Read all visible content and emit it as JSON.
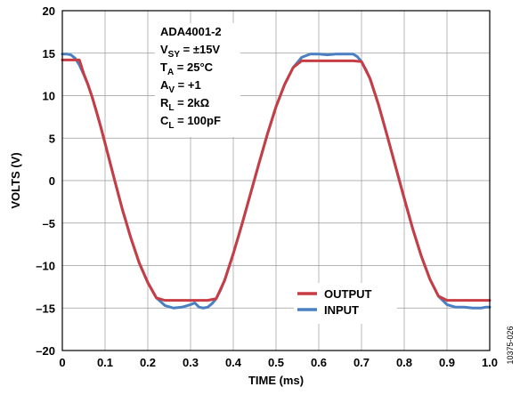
{
  "chart_data": {
    "type": "line",
    "xlabel": "TIME (ms)",
    "ylabel": "VOLTS (V)",
    "xlim": [
      0,
      1.0
    ],
    "ylim": [
      -20,
      20
    ],
    "xticks": [
      0,
      0.1,
      0.2,
      0.3,
      0.4,
      0.5,
      0.6,
      0.7,
      0.8,
      0.9,
      1.0
    ],
    "xtick_labels": [
      "0",
      "0.1",
      "0.2",
      "0.3",
      "0.4",
      "0.5",
      "0.6",
      "0.7",
      "0.8",
      "0.9",
      "1.0"
    ],
    "yticks": [
      20,
      15,
      10,
      5,
      0,
      -5,
      -10,
      -15,
      -20
    ],
    "ytick_labels": [
      "20",
      "15",
      "10",
      "5",
      "0",
      "–5",
      "–10",
      "–15",
      "–20"
    ],
    "grid": true,
    "legend_position": "bottom-right",
    "annotations": [
      {
        "main": "ADA4001-2",
        "sub": "",
        "rest": ""
      },
      {
        "main": "V",
        "sub": "SY",
        "rest": " = ±15V"
      },
      {
        "main": "T",
        "sub": "A",
        "rest": " = 25°C"
      },
      {
        "main": "A",
        "sub": "V",
        "rest": " = +1"
      },
      {
        "main": "R",
        "sub": "L",
        "rest": " = 2kΩ"
      },
      {
        "main": "C",
        "sub": "L",
        "rest": " = 100pF"
      }
    ],
    "figure_id": "10375-026",
    "series": [
      {
        "name": "INPUT",
        "color": "#4a7fc1",
        "x": [
          0,
          0.01,
          0.02,
          0.03,
          0.04,
          0.05,
          0.06,
          0.07,
          0.08,
          0.09,
          0.1,
          0.12,
          0.14,
          0.16,
          0.18,
          0.2,
          0.22,
          0.24,
          0.26,
          0.28,
          0.3,
          0.31,
          0.32,
          0.33,
          0.34,
          0.35,
          0.36,
          0.37,
          0.38,
          0.4,
          0.42,
          0.44,
          0.46,
          0.48,
          0.5,
          0.52,
          0.54,
          0.56,
          0.58,
          0.6,
          0.62,
          0.64,
          0.65,
          0.66,
          0.67,
          0.68,
          0.69,
          0.7,
          0.71,
          0.72,
          0.74,
          0.76,
          0.78,
          0.8,
          0.82,
          0.84,
          0.86,
          0.88,
          0.9,
          0.92,
          0.94,
          0.96,
          0.97,
          0.98,
          0.99,
          1.0
        ],
        "y": [
          14.9,
          14.9,
          14.8,
          14.4,
          13.6,
          12.5,
          11.3,
          9.8,
          8.1,
          6.3,
          4.4,
          0.5,
          -3.3,
          -6.7,
          -9.7,
          -12.0,
          -13.8,
          -14.7,
          -15.0,
          -14.9,
          -14.6,
          -14.4,
          -14.9,
          -15.0,
          -14.9,
          -14.5,
          -13.9,
          -12.9,
          -11.7,
          -8.6,
          -5.2,
          -1.6,
          2.0,
          5.5,
          8.7,
          11.3,
          13.3,
          14.5,
          14.9,
          14.9,
          14.8,
          14.9,
          14.9,
          14.9,
          14.9,
          14.9,
          14.6,
          14.0,
          13.1,
          12.0,
          8.9,
          5.3,
          1.6,
          -2.1,
          -5.7,
          -8.9,
          -11.6,
          -13.6,
          -14.6,
          -14.9,
          -14.9,
          -15.0,
          -15.0,
          -15.0,
          -14.9,
          -14.9
        ]
      },
      {
        "name": "OUTPUT",
        "color": "#c83c44",
        "x": [
          0,
          0.01,
          0.02,
          0.03,
          0.04,
          0.05,
          0.06,
          0.07,
          0.08,
          0.09,
          0.1,
          0.12,
          0.14,
          0.16,
          0.18,
          0.2,
          0.22,
          0.24,
          0.26,
          0.28,
          0.3,
          0.32,
          0.34,
          0.36,
          0.38,
          0.4,
          0.42,
          0.44,
          0.46,
          0.48,
          0.5,
          0.52,
          0.54,
          0.56,
          0.58,
          0.6,
          0.62,
          0.64,
          0.66,
          0.68,
          0.7,
          0.72,
          0.74,
          0.76,
          0.78,
          0.8,
          0.82,
          0.84,
          0.86,
          0.88,
          0.9,
          0.92,
          0.94,
          0.96,
          0.98,
          1.0
        ],
        "y": [
          14.2,
          14.2,
          14.2,
          14.2,
          14.2,
          12.6,
          11.3,
          9.8,
          8.1,
          6.3,
          4.4,
          0.5,
          -3.3,
          -6.7,
          -9.7,
          -12.0,
          -13.8,
          -14.1,
          -14.1,
          -14.1,
          -14.1,
          -14.1,
          -14.1,
          -13.9,
          -11.7,
          -8.6,
          -5.2,
          -1.6,
          2.0,
          5.5,
          8.7,
          11.3,
          13.3,
          14.1,
          14.1,
          14.1,
          14.1,
          14.1,
          14.1,
          14.1,
          14.0,
          12.0,
          8.9,
          5.3,
          1.6,
          -2.1,
          -5.7,
          -8.9,
          -11.6,
          -13.6,
          -14.1,
          -14.1,
          -14.1,
          -14.1,
          -14.1,
          -14.1
        ]
      }
    ],
    "legend_order": [
      "OUTPUT",
      "INPUT"
    ]
  }
}
